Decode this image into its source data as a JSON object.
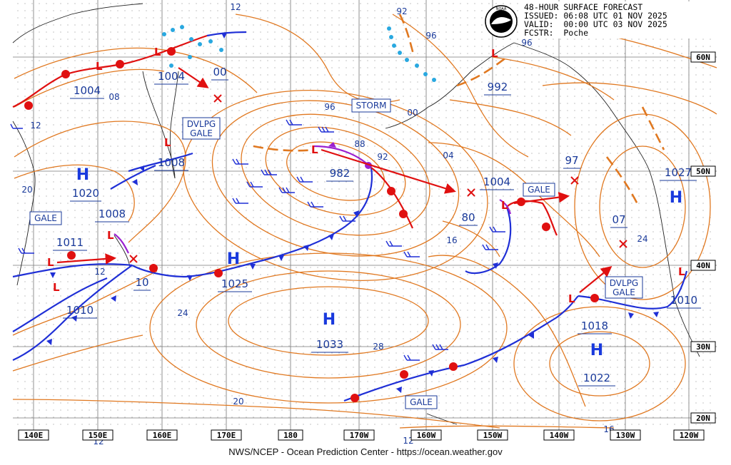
{
  "header": {
    "title": "48-HOUR SURFACE FORECAST",
    "issued": "ISSUED: 06:08 UTC 01 NOV 2025",
    "valid": "VALID:  00:00 UTC 03 NOV 2025",
    "forecaster": "FCSTR:  Poche"
  },
  "footer": "NWS/NCEP - Ocean Prediction Center - https://ocean.weather.gov",
  "logo": {
    "text": "NOAA",
    "icon": "noaa-logo-icon"
  },
  "longitudes": [
    "140E",
    "150E",
    "160E",
    "170E",
    "180",
    "170W",
    "160W",
    "150W",
    "140W",
    "130W",
    "120W"
  ],
  "latitudes": [
    "60N",
    "50N",
    "40N",
    "30N",
    "20N"
  ],
  "highs": [
    {
      "id": "h-1020",
      "letter": "H",
      "pressure": "1020"
    },
    {
      "id": "h-1025",
      "letter": "H",
      "pressure": "1025"
    },
    {
      "id": "h-1033",
      "letter": "H",
      "pressure": "1033"
    },
    {
      "id": "h-1022",
      "letter": "H",
      "pressure": "1022"
    },
    {
      "id": "h-1027",
      "letter": "H",
      "pressure": "1027"
    }
  ],
  "lows": [
    {
      "id": "l-1004a",
      "pressure": "1004"
    },
    {
      "id": "l-1004b",
      "pressure": "1004"
    },
    {
      "id": "l-1008a",
      "pressure": "1008"
    },
    {
      "id": "l-982",
      "pressure": "982"
    },
    {
      "id": "l-992",
      "pressure": "992"
    },
    {
      "id": "l-1004c",
      "pressure": "1004"
    },
    {
      "id": "l-1011",
      "pressure": "1011"
    },
    {
      "id": "l-1008b",
      "pressure": "1008"
    },
    {
      "id": "l-1010a",
      "pressure": "1010"
    },
    {
      "id": "l-1018",
      "pressure": "1018"
    },
    {
      "id": "l-1010b",
      "pressure": "1010"
    }
  ],
  "forecast_positions": [
    {
      "id": "x-00",
      "pressure": "00"
    },
    {
      "id": "x-10",
      "pressure": "10"
    },
    {
      "id": "x-80",
      "pressure": "80"
    },
    {
      "id": "x-97",
      "pressure": "97"
    },
    {
      "id": "x-07",
      "pressure": "07"
    }
  ],
  "warnings": [
    {
      "id": "w-storm",
      "text": "STORM"
    },
    {
      "id": "w-dvlpg1",
      "line1": "DVLPG",
      "line2": "GALE"
    },
    {
      "id": "w-gale1",
      "text": "GALE"
    },
    {
      "id": "w-gale2",
      "text": "GALE"
    },
    {
      "id": "w-dvlpg2",
      "line1": "DVLPG",
      "line2": "GALE"
    },
    {
      "id": "w-gale3",
      "text": "GALE"
    }
  ],
  "isobar_labels": [
    "12",
    "92",
    "96",
    "08",
    "12",
    "96",
    "88",
    "92",
    "00",
    "04",
    "20",
    "16",
    "12",
    "24",
    "24",
    "28",
    "20",
    "12",
    "16"
  ],
  "colors": {
    "isobar": "#e07820",
    "label": "#1a3a9a",
    "cold": "#1f2fd6",
    "warm": "#e01010",
    "occluded": "#9a20d0",
    "grid": "#666",
    "land": "#000",
    "ice": "#29a8e0",
    "track": "#e01010"
  }
}
